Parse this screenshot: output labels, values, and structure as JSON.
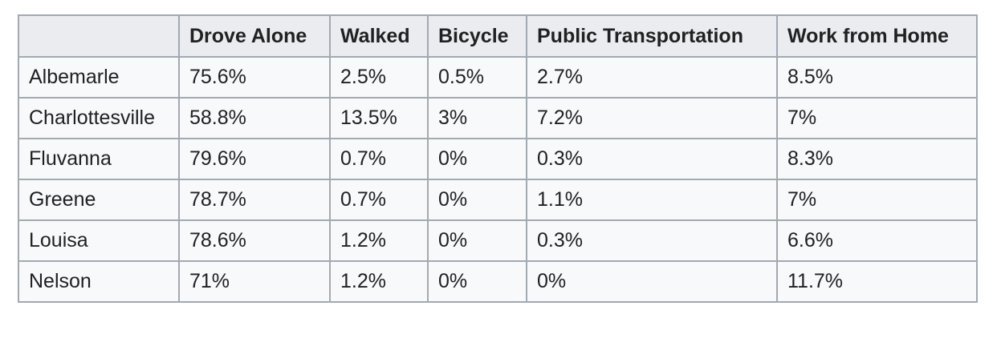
{
  "table": {
    "columns": [
      "",
      "Drove Alone",
      "Walked",
      "Bicycle",
      "Public Transportation",
      "Work from Home"
    ],
    "rows": [
      [
        "Albemarle",
        "75.6%",
        "2.5%",
        "0.5%",
        "2.7%",
        "8.5%"
      ],
      [
        "Charlottesville",
        "58.8%",
        "13.5%",
        "3%",
        "7.2%",
        "7%"
      ],
      [
        "Fluvanna",
        "79.6%",
        "0.7%",
        "0%",
        "0.3%",
        "8.3%"
      ],
      [
        "Greene",
        "78.7%",
        "0.7%",
        "0%",
        "1.1%",
        "7%"
      ],
      [
        "Louisa",
        "78.6%",
        "1.2%",
        "0%",
        "0.3%",
        "6.6%"
      ],
      [
        "Nelson",
        "71%",
        "1.2%",
        "0%",
        "0%",
        "11.7%"
      ]
    ]
  },
  "colors": {
    "border": "#a2a9b1",
    "header_bg": "#eaecf0",
    "cell_bg": "#f8f9fa",
    "text": "#202122"
  }
}
